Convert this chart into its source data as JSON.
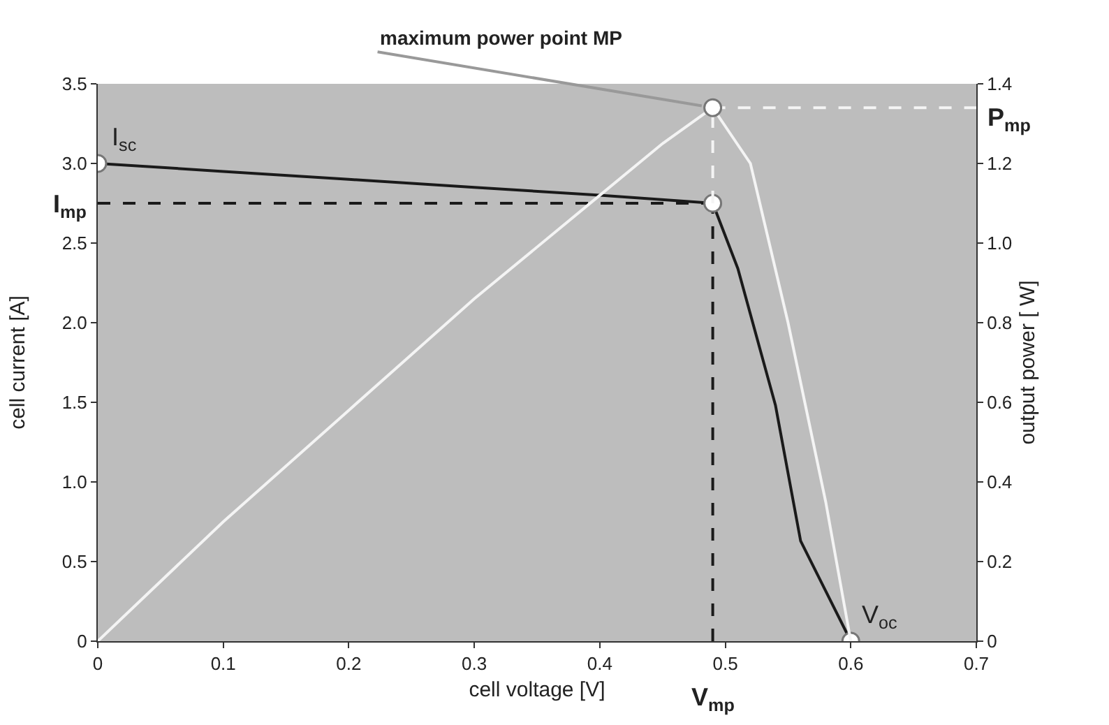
{
  "chart_data": {
    "type": "line",
    "xlabel": "cell voltage [V]",
    "ylabel": "cell current [A]",
    "y2label": "output power [ W]",
    "xlim": [
      0,
      0.7
    ],
    "xticks": [
      0,
      0.1,
      0.2,
      0.3,
      0.4,
      0.5,
      0.6,
      0.7
    ],
    "ylim": [
      0,
      3.5
    ],
    "yticks": [
      0,
      0.5,
      {
        "value": 1,
        "label": "1.0"
      },
      1.5,
      {
        "value": 2,
        "label": "2.0"
      },
      2.5,
      {
        "value": 3,
        "label": "3.0"
      },
      3.5
    ],
    "y2lim": [
      0,
      1.4
    ],
    "y2ticks": [
      0,
      0.2,
      0.4,
      0.6,
      0.8,
      {
        "value": 1,
        "label": "1.0"
      },
      1.2,
      1.4
    ],
    "grid": false,
    "series": [
      {
        "color": "#1a1a1a",
        "line_style": "solid",
        "marker": "none",
        "x": [
          0,
          0.1,
          0.2,
          0.3,
          0.4,
          0.49,
          0.51,
          0.54,
          0.56,
          0.6
        ],
        "values": [
          3.0,
          2.95,
          2.9,
          2.85,
          2.8,
          2.75,
          2.34,
          1.48,
          0.63,
          0
        ]
      },
      {
        "axis": "y2",
        "color": "#f4f4f4",
        "line_style": "solid",
        "marker": "none",
        "x": [
          0,
          0.1,
          0.2,
          0.3,
          0.4,
          0.45,
          0.49,
          0.52,
          0.55,
          0.58,
          0.6
        ],
        "values": [
          0,
          0.3,
          0.58,
          0.86,
          1.12,
          1.25,
          1.34,
          1.2,
          0.8,
          0.35,
          0
        ]
      },
      {
        "type": "line",
        "color": "#1a1a1a",
        "line_style": "dashed",
        "marker": "none",
        "x": [
          0,
          0.49
        ],
        "values": [
          2.75,
          2.75
        ]
      },
      {
        "type": "line",
        "color": "#1a1a1a",
        "line_style": "dashed",
        "marker": "none",
        "x": [
          0.49,
          0.49
        ],
        "values": [
          0,
          2.75
        ]
      },
      {
        "type": "line",
        "axis": "y2",
        "color": "#f4f4f4",
        "line_style": "dashed",
        "marker": "none",
        "x": [
          0.49,
          0.49
        ],
        "values": [
          1.1,
          1.34
        ]
      },
      {
        "type": "line",
        "axis": "y2",
        "color": "#f4f4f4",
        "line_style": "dashed",
        "marker": "none",
        "x": [
          0.49,
          0.7
        ],
        "values": [
          1.34,
          1.34
        ]
      },
      {
        "type": "scatter",
        "color": "#ffffff",
        "marker": "circle",
        "x": [
          0,
          0.49,
          0.6
        ],
        "values": [
          3.0,
          2.75,
          0
        ]
      },
      {
        "type": "scatter",
        "axis": "y2",
        "color": "#ffffff",
        "marker": "circle",
        "x": [
          0.49
        ],
        "values": [
          1.34
        ]
      }
    ],
    "annotations": [
      {
        "text": "maximum power point MP",
        "x": 0.49,
        "y": 3.35
      },
      {
        "text": "I$_{sc}$",
        "x": 0,
        "y": 3.0
      },
      {
        "text": "I$_{mp}$",
        "x": 0,
        "y": 2.75
      },
      {
        "text": "P$_{mp}$",
        "x": 0.7,
        "y": 3.35
      },
      {
        "text": "V$_{oc}$",
        "x": 0.6,
        "y": 0
      },
      {
        "text": "V$_{mp}$",
        "x": 0.49,
        "y": 0
      }
    ]
  }
}
